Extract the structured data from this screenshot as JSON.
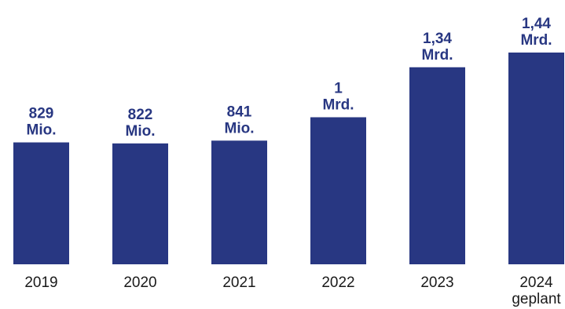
{
  "chart_data": {
    "type": "bar",
    "categories": [
      [
        "2019"
      ],
      [
        "2020"
      ],
      [
        "2021"
      ],
      [
        "2022"
      ],
      [
        "2023"
      ],
      [
        "2024",
        "geplant"
      ]
    ],
    "values": [
      829,
      822,
      841,
      1000,
      1340,
      1440
    ],
    "value_unit": "Mio.",
    "data_labels": [
      [
        "829",
        "Mio."
      ],
      [
        "822",
        "Mio."
      ],
      [
        "841",
        "Mio."
      ],
      [
        "1",
        "Mrd."
      ],
      [
        "1,34",
        "Mrd."
      ],
      [
        "1,44",
        "Mrd."
      ]
    ],
    "title": "",
    "xlabel": "",
    "ylabel": "",
    "ylim": [
      0,
      1440
    ],
    "grid": false,
    "legend": "none",
    "colors": {
      "bar": "#283782",
      "label": "#283782",
      "tick": "#1a1a1a"
    }
  }
}
